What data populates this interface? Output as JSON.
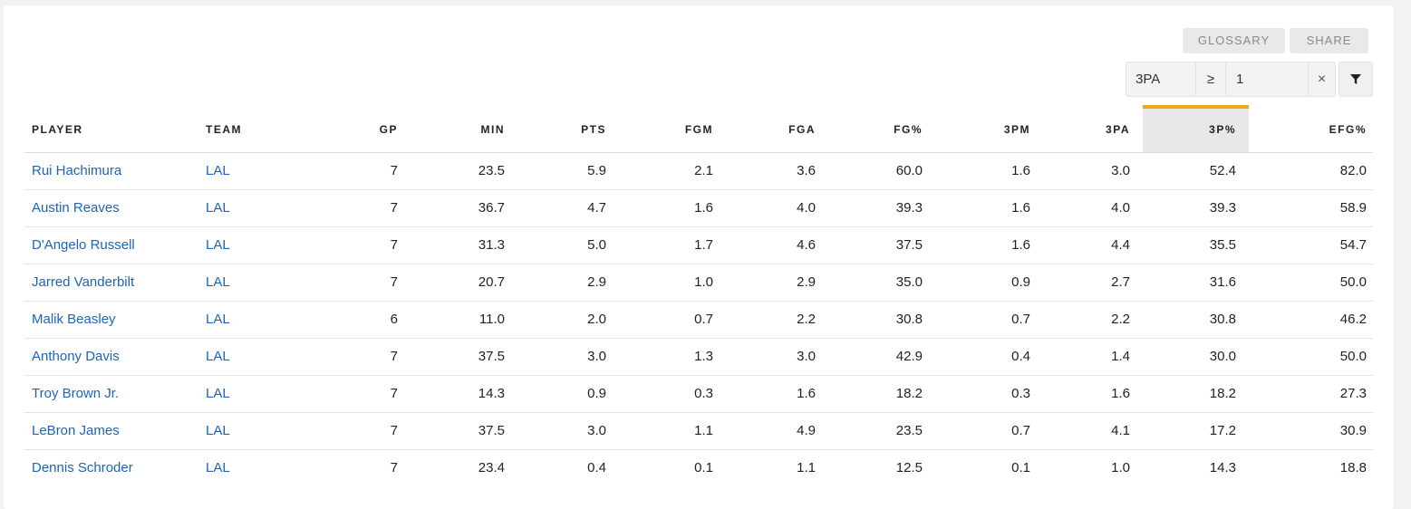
{
  "toolbar": {
    "glossary_label": "GLOSSARY",
    "share_label": "SHARE"
  },
  "filter": {
    "stat": "3PA",
    "operator": "≥",
    "value": "1",
    "clear": "×"
  },
  "columns": [
    "PLAYER",
    "TEAM",
    "GP",
    "MIN",
    "PTS",
    "FGM",
    "FGA",
    "FG%",
    "3PM",
    "3PA",
    "3P%",
    "EFG%"
  ],
  "sorted_column": "3P%",
  "accent_color": "#e8a91e",
  "link_color": "#1d64b8",
  "rows": [
    [
      "Rui Hachimura",
      "LAL",
      "7",
      "23.5",
      "5.9",
      "2.1",
      "3.6",
      "60.0",
      "1.6",
      "3.0",
      "52.4",
      "82.0"
    ],
    [
      "Austin Reaves",
      "LAL",
      "7",
      "36.7",
      "4.7",
      "1.6",
      "4.0",
      "39.3",
      "1.6",
      "4.0",
      "39.3",
      "58.9"
    ],
    [
      "D'Angelo Russell",
      "LAL",
      "7",
      "31.3",
      "5.0",
      "1.7",
      "4.6",
      "37.5",
      "1.6",
      "4.4",
      "35.5",
      "54.7"
    ],
    [
      "Jarred Vanderbilt",
      "LAL",
      "7",
      "20.7",
      "2.9",
      "1.0",
      "2.9",
      "35.0",
      "0.9",
      "2.7",
      "31.6",
      "50.0"
    ],
    [
      "Malik Beasley",
      "LAL",
      "6",
      "11.0",
      "2.0",
      "0.7",
      "2.2",
      "30.8",
      "0.7",
      "2.2",
      "30.8",
      "46.2"
    ],
    [
      "Anthony Davis",
      "LAL",
      "7",
      "37.5",
      "3.0",
      "1.3",
      "3.0",
      "42.9",
      "0.4",
      "1.4",
      "30.0",
      "50.0"
    ],
    [
      "Troy Brown Jr.",
      "LAL",
      "7",
      "14.3",
      "0.9",
      "0.3",
      "1.6",
      "18.2",
      "0.3",
      "1.6",
      "18.2",
      "27.3"
    ],
    [
      "LeBron James",
      "LAL",
      "7",
      "37.5",
      "3.0",
      "1.1",
      "4.9",
      "23.5",
      "0.7",
      "4.1",
      "17.2",
      "30.9"
    ],
    [
      "Dennis Schroder",
      "LAL",
      "7",
      "23.4",
      "0.4",
      "0.1",
      "1.1",
      "12.5",
      "0.1",
      "1.0",
      "14.3",
      "18.8"
    ]
  ]
}
